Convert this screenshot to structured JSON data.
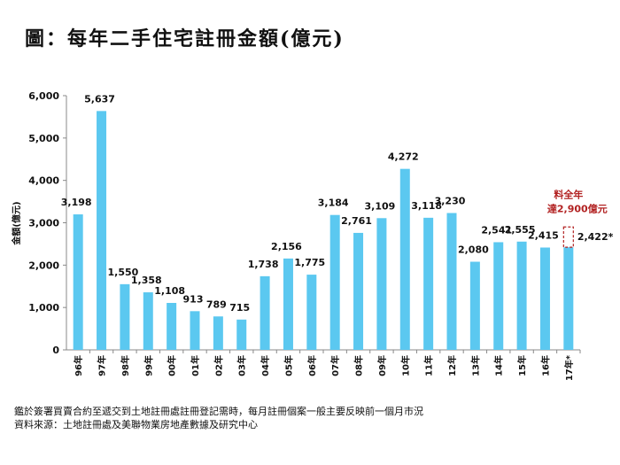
{
  "chart_data": {
    "type": "bar",
    "title": "圖：每年二手住宅註冊金額(億元)",
    "xlabel": "",
    "ylabel": "金額(億元)",
    "ylim": [
      0,
      6000
    ],
    "yticks": [
      "0",
      "1,000",
      "2,000",
      "3,000",
      "4,000",
      "5,000",
      "6,000"
    ],
    "ytick_values": [
      0,
      1000,
      2000,
      3000,
      4000,
      5000,
      6000
    ],
    "categories": [
      "96年",
      "97年",
      "98年",
      "99年",
      "00年",
      "01年",
      "02年",
      "03年",
      "04年",
      "05年",
      "06年",
      "07年",
      "08年",
      "09年",
      "10年",
      "11年",
      "12年",
      "13年",
      "14年",
      "15年",
      "16年",
      "17年*"
    ],
    "values": [
      3198,
      5637,
      1550,
      1358,
      1108,
      913,
      789,
      715,
      1738,
      2156,
      1775,
      3184,
      2761,
      3109,
      4272,
      3118,
      3230,
      2080,
      2541,
      2555,
      2415,
      2422
    ],
    "labels": [
      "3,198",
      "5,637",
      "1,550",
      "1,358",
      "1,108",
      "913",
      "789",
      "715",
      "1,738",
      "2,156",
      "1,775",
      "3,184",
      "2,761",
      "3,109",
      "4,272",
      "3,118",
      "3,230",
      "2,080",
      "2,541",
      "2,555",
      "2,415",
      "2,422*"
    ],
    "projection": {
      "value": 2900,
      "annotation_line1": "料全年",
      "annotation_line2": "達2,900億元"
    },
    "colors": {
      "bar": "#5BC8F0",
      "projection": "#B22222"
    },
    "grid": false
  },
  "notes": {
    "line1": "鑑於簽署買賣合約至遞交到土地註冊處註冊登記需時，每月註冊個案一般主要反映前一個月市況",
    "line2": "資料來源：土地註冊處及美聯物業房地產數據及研究中心"
  }
}
